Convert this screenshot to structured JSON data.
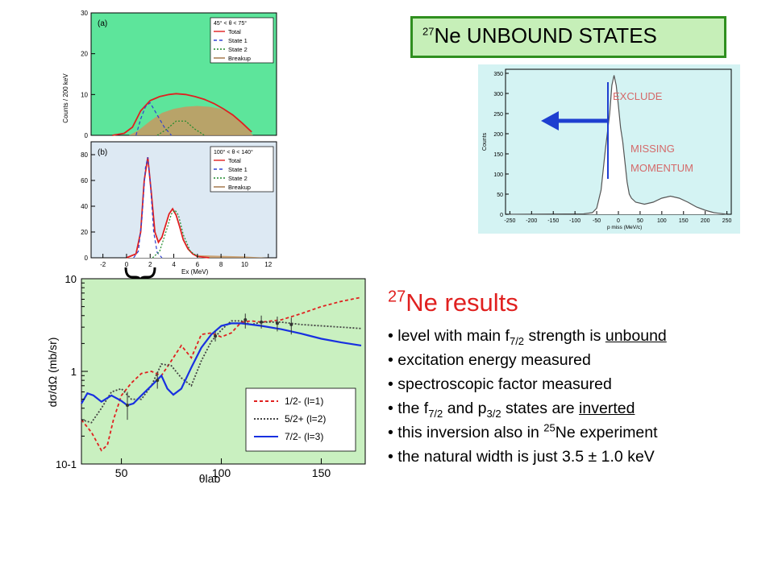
{
  "slide": {
    "title": {
      "sup": "27",
      "text": "Ne UNBOUND STATES"
    },
    "results": {
      "title_sup": "27",
      "title_text": "Ne results",
      "items": [
        {
          "pre": "level with main f",
          "sub": "7/2",
          "mid": " strength is ",
          "u": "unbound"
        },
        {
          "pre": "excitation energy measured"
        },
        {
          "pre": "spectroscopic factor measured"
        },
        {
          "pre": "the f",
          "sub": "7/2",
          "mid": " and p",
          "sub2": "3/2",
          "mid2": " states are ",
          "u": "inverted"
        },
        {
          "pre": "this inversion also in ",
          "sup": "25",
          "mid": "Ne experiment"
        },
        {
          "pre": "the natural width is just 3.5 ± 1.0 keV"
        }
      ]
    }
  },
  "chart_data": [
    {
      "type": "scatter",
      "panel": "(a)",
      "ylabel": "Counts / 200 keV",
      "xlim": [
        -3,
        12.7
      ],
      "ylim": [
        0,
        30
      ],
      "yticks": [
        "0",
        "10",
        "20",
        "30"
      ],
      "angle_label": "45° < θ < 75°",
      "legend": [
        "Total",
        "State 1",
        "State 2",
        "Breakup"
      ],
      "background": "#5de59b",
      "series": [
        {
          "name": "Total",
          "color": "#e02020",
          "x": [
            -1.2,
            -0.2,
            0.5,
            1.2,
            2,
            2.8,
            3.6,
            4.2,
            5,
            5.8,
            6.6,
            7.4,
            8.2,
            9,
            9.8,
            10.6
          ],
          "y": [
            0,
            0.5,
            2,
            6,
            8.5,
            9.5,
            10,
            10.2,
            10,
            9.5,
            8.8,
            7.8,
            6.5,
            5,
            3,
            0.8
          ]
        },
        {
          "name": "State 1",
          "color": "#3040d0",
          "x": [
            0.8,
            1.2,
            1.6,
            2,
            2.6,
            3.2,
            3.8
          ],
          "y": [
            0,
            4,
            7,
            8,
            5,
            2,
            0
          ]
        },
        {
          "name": "State 2",
          "color": "#1f8a2b",
          "x": [
            2.6,
            3.4,
            4.2,
            5,
            5.8,
            6.6
          ],
          "y": [
            0,
            1.5,
            3.5,
            3.5,
            1.5,
            0
          ]
        },
        {
          "name": "Breakup",
          "color": "#a07040",
          "x": [
            0.2,
            1,
            2,
            3,
            4,
            5,
            6,
            7,
            8,
            9,
            10,
            10.7
          ],
          "y": [
            0,
            1.2,
            3.5,
            5.5,
            6.5,
            7,
            7.2,
            7,
            6.5,
            5,
            2.5,
            0
          ]
        }
      ]
    },
    {
      "type": "scatter",
      "panel": "(b)",
      "xlabel": "Ex (MeV)",
      "xlim": [
        -3,
        12.7
      ],
      "ylim": [
        0,
        90
      ],
      "xticks": [
        "-2",
        "0",
        "2",
        "4",
        "6",
        "8",
        "10",
        "12"
      ],
      "yticks": [
        "0",
        "20",
        "40",
        "60",
        "80"
      ],
      "angle_label": "100° < θ < 140°",
      "legend": [
        "Total",
        "State 1",
        "State 2",
        "Breakup"
      ],
      "background": "#dde9f3",
      "series": [
        {
          "name": "Total",
          "color": "#e02020",
          "x": [
            0,
            0.8,
            1.2,
            1.5,
            1.8,
            2.1,
            2.4,
            2.7,
            3,
            3.3,
            3.6,
            3.9,
            4.2,
            4.5,
            4.8,
            5.2,
            5.6,
            6,
            7
          ],
          "y": [
            0,
            3,
            20,
            60,
            78,
            50,
            20,
            12,
            16,
            25,
            34,
            38,
            33,
            24,
            14,
            7,
            3,
            1,
            0
          ]
        },
        {
          "name": "State 1",
          "color": "#3040d0",
          "x": [
            0.6,
            1,
            1.3,
            1.6,
            1.8,
            2,
            2.3,
            2.6,
            3
          ],
          "y": [
            0,
            5,
            30,
            70,
            78,
            60,
            20,
            4,
            0
          ]
        },
        {
          "name": "State 2",
          "color": "#1f8a2b",
          "x": [
            2.2,
            2.8,
            3.4,
            3.8,
            4.1,
            4.4,
            4.8,
            5.4,
            6.2
          ],
          "y": [
            0,
            5,
            22,
            34,
            37,
            33,
            18,
            5,
            0
          ]
        },
        {
          "name": "Breakup",
          "color": "#a07040",
          "x": [
            0,
            2,
            4,
            6,
            8,
            10,
            12
          ],
          "y": [
            0,
            1.5,
            2,
            2,
            1.5,
            1,
            0
          ]
        }
      ]
    },
    {
      "type": "line",
      "xlabel": "θlab",
      "ylabel": "dσ/dΩ (mb/sr)",
      "xlim": [
        30,
        172
      ],
      "ylim": [
        0.1,
        10
      ],
      "yscale": "log",
      "xticks": [
        "50",
        "100",
        "150"
      ],
      "yticks": [
        "10",
        "1",
        "10-1"
      ],
      "background": "#c9f0c0",
      "legend": [
        "1/2- (l=1)",
        "5/2+ (l=2)",
        "7/2- (l=3)"
      ],
      "series": [
        {
          "name": "1/2- (l=1)",
          "color": "#e0201f",
          "x": [
            30,
            35,
            40,
            43,
            46,
            50,
            55,
            60,
            65,
            70,
            75,
            80,
            85,
            90,
            95,
            100,
            105,
            110,
            115,
            120,
            130,
            140,
            150,
            160,
            170
          ],
          "y": [
            0.3,
            0.22,
            0.14,
            0.16,
            0.3,
            0.55,
            0.75,
            0.95,
            1.0,
            0.9,
            1.3,
            1.9,
            1.4,
            2.5,
            2.6,
            2.35,
            2.6,
            3.4,
            3.5,
            3.4,
            3.6,
            4.2,
            5.0,
            5.7,
            6.3
          ]
        },
        {
          "name": "5/2+ (l=2)",
          "color": "#444444",
          "x": [
            30,
            35,
            40,
            45,
            50,
            55,
            60,
            65,
            70,
            75,
            80,
            85,
            90,
            95,
            100,
            105,
            110,
            115,
            120,
            130,
            140,
            150,
            160,
            170
          ],
          "y": [
            0.3,
            0.28,
            0.4,
            0.6,
            0.65,
            0.5,
            0.5,
            0.7,
            1.2,
            1.15,
            0.85,
            0.7,
            1.3,
            2.1,
            2.8,
            3.5,
            3.5,
            3.2,
            3.4,
            3.4,
            3.2,
            3.1,
            3.0,
            2.9
          ]
        },
        {
          "name": "7/2- (l=3)",
          "color": "#1830e0",
          "x": [
            30,
            33,
            36,
            40,
            45,
            50,
            53,
            56,
            60,
            65,
            70,
            73,
            76,
            80,
            85,
            90,
            95,
            100,
            105,
            110,
            115,
            120,
            130,
            140,
            150,
            160,
            170
          ],
          "y": [
            0.45,
            0.58,
            0.55,
            0.47,
            0.55,
            0.48,
            0.43,
            0.45,
            0.55,
            0.7,
            0.9,
            0.65,
            0.56,
            0.65,
            1.1,
            1.8,
            2.5,
            3.1,
            3.3,
            3.3,
            3.2,
            3.1,
            2.85,
            2.55,
            2.25,
            2.05,
            1.9
          ]
        }
      ],
      "points": [
        {
          "x": 53,
          "y": 0.43,
          "elo": 0.3,
          "ehi": 0.6
        },
        {
          "x": 68,
          "y": 0.8,
          "elo": 0.65,
          "ehi": 0.95
        },
        {
          "x": 97,
          "y": 2.4,
          "elo": 2.1,
          "ehi": 2.7
        },
        {
          "x": 112,
          "y": 3.6,
          "elo": 2.9,
          "ehi": 4.2
        },
        {
          "x": 120,
          "y": 3.4,
          "elo": 2.9,
          "ehi": 4.0
        },
        {
          "x": 128,
          "y": 3.3,
          "elo": 2.7,
          "ehi": 3.9
        },
        {
          "x": 135,
          "y": 3.2,
          "elo": 2.5,
          "ehi": 3.8
        }
      ]
    },
    {
      "type": "line",
      "xlabel": "p miss (MeV/c)",
      "ylabel": "Counts",
      "xlim": [
        -260,
        260
      ],
      "ylim": [
        0,
        360
      ],
      "xticks": [
        "-250",
        "-200",
        "-150",
        "-100",
        "-50",
        "0",
        "50",
        "100",
        "150",
        "200",
        "250"
      ],
      "yticks": [
        "0",
        "50",
        "100",
        "150",
        "200",
        "250",
        "300",
        "350"
      ],
      "background": "#d4f3f3",
      "annotations": [
        "EXCLUDE",
        "MISSING MOMENTUM"
      ],
      "series": [
        {
          "name": "",
          "color": "#555555",
          "x": [
            -260,
            -80,
            -60,
            -50,
            -40,
            -30,
            -20,
            -15,
            -10,
            -5,
            0,
            5,
            10,
            15,
            20,
            25,
            30,
            40,
            60,
            80,
            100,
            120,
            140,
            160,
            180,
            200,
            220,
            250
          ],
          "y": [
            0,
            1,
            4,
            15,
            60,
            160,
            250,
            320,
            345,
            320,
            270,
            215,
            180,
            130,
            80,
            50,
            40,
            30,
            25,
            30,
            40,
            45,
            40,
            30,
            18,
            10,
            4,
            0
          ]
        }
      ]
    }
  ]
}
